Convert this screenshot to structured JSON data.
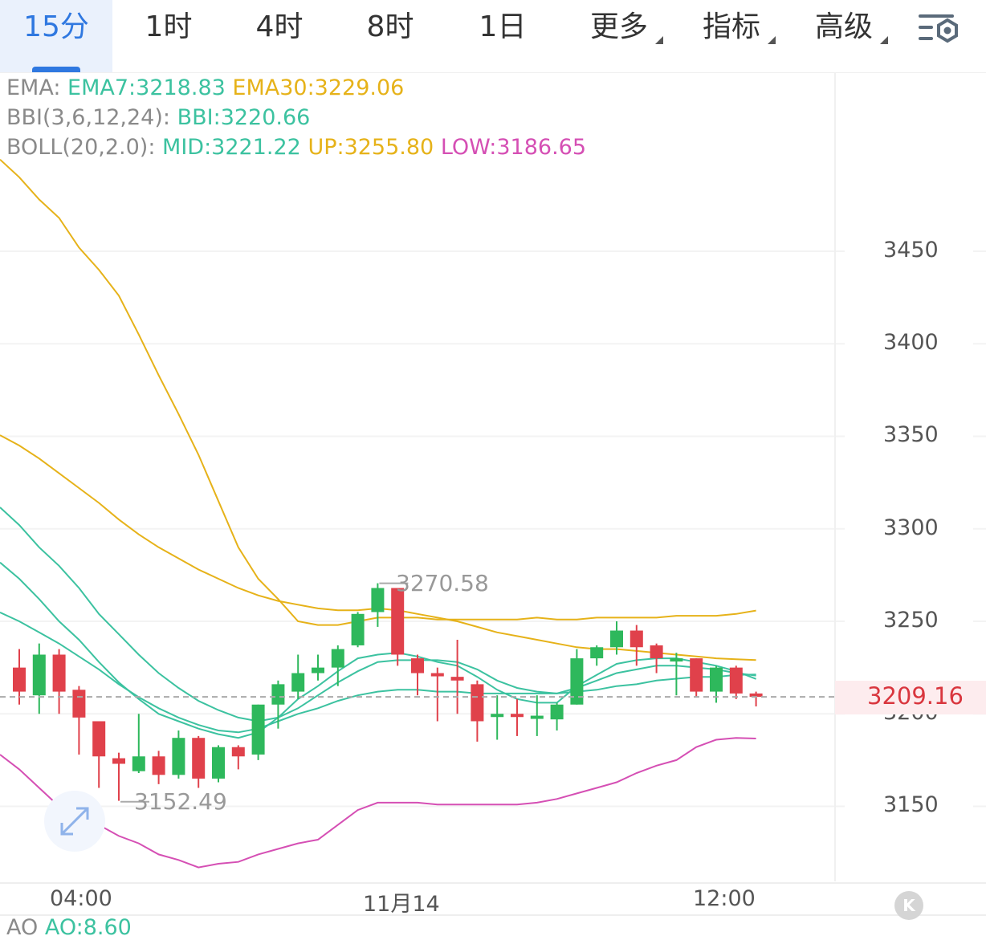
{
  "tabs": [
    {
      "label": "15分",
      "active": true
    },
    {
      "label": "1时"
    },
    {
      "label": "4时"
    },
    {
      "label": "8时"
    },
    {
      "label": "1日"
    },
    {
      "label": "更多",
      "dropdown": true
    },
    {
      "label": "指标",
      "dropdown": true
    },
    {
      "label": "高级",
      "dropdown": true
    }
  ],
  "settings_icon": "chart-settings-icon",
  "legend": {
    "ema": {
      "name": "EMA:",
      "ema7": "EMA7:3218.83",
      "ema30": "EMA30:3229.06"
    },
    "bbi": {
      "name": "BBI(3,6,12,24):",
      "value": "BBI:3220.66"
    },
    "boll": {
      "name": "BOLL(20,2.0):",
      "mid": "MID:3221.22",
      "up": "UP:3255.80",
      "low": "LOW:3186.65"
    }
  },
  "ao": {
    "name": "AO",
    "value": "AO:8.60"
  },
  "colors": {
    "up": "#2eb85c",
    "down": "#e0414b",
    "ema7": "#3cc2a0",
    "ema30": "#e6b219",
    "boll_low": "#d54fb4",
    "accent": "#2f78e0",
    "last_price": "#d9363e"
  },
  "chart_data": {
    "type": "candlestick",
    "y_axis": {
      "ticks": [
        3450,
        3400,
        3350,
        3300,
        3250,
        3200,
        3150
      ],
      "range": [
        3110,
        3500
      ]
    },
    "x_axis": {
      "labels": [
        "04:00",
        "11月14",
        "12:00"
      ]
    },
    "last_price": "3209.16",
    "high_marker": "3270.58",
    "low_marker": "3152.49",
    "candles": [
      {
        "o": 3225,
        "h": 3235,
        "l": 3205,
        "c": 3212
      },
      {
        "o": 3210,
        "h": 3238,
        "l": 3200,
        "c": 3232
      },
      {
        "o": 3232,
        "h": 3235,
        "l": 3200,
        "c": 3212
      },
      {
        "o": 3213,
        "h": 3215,
        "l": 3178,
        "c": 3198
      },
      {
        "o": 3196,
        "h": 3196,
        "l": 3160,
        "c": 3177
      },
      {
        "o": 3176,
        "h": 3179,
        "l": 3153,
        "c": 3173
      },
      {
        "o": 3169,
        "h": 3200,
        "l": 3168,
        "c": 3177
      },
      {
        "o": 3177,
        "h": 3180,
        "l": 3162,
        "c": 3167
      },
      {
        "o": 3167,
        "h": 3191,
        "l": 3165,
        "c": 3187
      },
      {
        "o": 3187,
        "h": 3188,
        "l": 3160,
        "c": 3165
      },
      {
        "o": 3165,
        "h": 3183,
        "l": 3163,
        "c": 3182
      },
      {
        "o": 3182,
        "h": 3183,
        "l": 3170,
        "c": 3177
      },
      {
        "o": 3178,
        "h": 3205,
        "l": 3175,
        "c": 3205
      },
      {
        "o": 3205,
        "h": 3218,
        "l": 3192,
        "c": 3216
      },
      {
        "o": 3212,
        "h": 3232,
        "l": 3208,
        "c": 3222
      },
      {
        "o": 3222,
        "h": 3232,
        "l": 3218,
        "c": 3225
      },
      {
        "o": 3225,
        "h": 3237,
        "l": 3215,
        "c": 3235
      },
      {
        "o": 3237,
        "h": 3255,
        "l": 3236,
        "c": 3254
      },
      {
        "o": 3255,
        "h": 3270.58,
        "l": 3247,
        "c": 3268
      },
      {
        "o": 3268,
        "h": 3268,
        "l": 3226,
        "c": 3232
      },
      {
        "o": 3230,
        "h": 3232,
        "l": 3210,
        "c": 3222
      },
      {
        "o": 3222,
        "h": 3225,
        "l": 3196,
        "c": 3221
      },
      {
        "o": 3220,
        "h": 3240,
        "l": 3200,
        "c": 3218
      },
      {
        "o": 3216,
        "h": 3218,
        "l": 3185,
        "c": 3196
      },
      {
        "o": 3200,
        "h": 3210,
        "l": 3186,
        "c": 3200
      },
      {
        "o": 3200,
        "h": 3208,
        "l": 3188,
        "c": 3199
      },
      {
        "o": 3199,
        "h": 3210,
        "l": 3188,
        "c": 3199
      },
      {
        "o": 3197,
        "h": 3206,
        "l": 3191,
        "c": 3205
      },
      {
        "o": 3205,
        "h": 3235,
        "l": 3205,
        "c": 3230
      },
      {
        "o": 3230,
        "h": 3237,
        "l": 3226,
        "c": 3236
      },
      {
        "o": 3236,
        "h": 3250,
        "l": 3232,
        "c": 3245
      },
      {
        "o": 3245,
        "h": 3248,
        "l": 3226,
        "c": 3236
      },
      {
        "o": 3237,
        "h": 3238,
        "l": 3222,
        "c": 3230
      },
      {
        "o": 3230,
        "h": 3233,
        "l": 3210,
        "c": 3230
      },
      {
        "o": 3230,
        "h": 3230,
        "l": 3209,
        "c": 3212
      },
      {
        "o": 3212,
        "h": 3226,
        "l": 3206,
        "c": 3225
      },
      {
        "o": 3225,
        "h": 3226,
        "l": 3208,
        "c": 3211
      },
      {
        "o": 3211,
        "h": 3212,
        "l": 3204,
        "c": 3209.16
      }
    ],
    "series": [
      {
        "name": "EMA30",
        "values": [
          3345,
          3338,
          3330,
          3322,
          3314,
          3305,
          3297,
          3290,
          3284,
          3278,
          3273,
          3268,
          3264,
          3261,
          3259,
          3257,
          3256,
          3256,
          3257,
          3256,
          3254,
          3252,
          3250,
          3247,
          3244,
          3242,
          3240,
          3238,
          3236,
          3235,
          3235,
          3234,
          3233,
          3232,
          3231,
          3230,
          3229.5,
          3229.06
        ]
      },
      {
        "name": "BOLL UP",
        "values": [
          3490,
          3478,
          3468,
          3452,
          3440,
          3426,
          3405,
          3383,
          3362,
          3340,
          3315,
          3290,
          3273,
          3262,
          3250,
          3248,
          3248,
          3250,
          3252,
          3252,
          3252,
          3251,
          3251,
          3251,
          3251,
          3251,
          3252,
          3251,
          3251,
          3252,
          3252,
          3252,
          3252,
          3253,
          3253,
          3253,
          3254,
          3255.8
        ]
      },
      {
        "name": "EMA7",
        "values": [
          3273,
          3262,
          3250,
          3240,
          3228,
          3217,
          3208,
          3200,
          3196,
          3192,
          3189,
          3187,
          3190,
          3198,
          3208,
          3215,
          3223,
          3230,
          3232,
          3233,
          3231,
          3228,
          3226,
          3220,
          3213,
          3208,
          3206,
          3206,
          3215,
          3221,
          3227,
          3229,
          3230,
          3230,
          3228,
          3226,
          3223,
          3218.83
        ]
      },
      {
        "name": "BBI",
        "values": [
          3302,
          3290,
          3280,
          3268,
          3254,
          3243,
          3232,
          3222,
          3214,
          3207,
          3202,
          3198,
          3196,
          3198,
          3203,
          3210,
          3217,
          3223,
          3228,
          3229,
          3229,
          3229,
          3228,
          3224,
          3218,
          3214,
          3212,
          3211,
          3214,
          3218,
          3222,
          3224,
          3226,
          3226,
          3225,
          3224,
          3222,
          3220.66
        ]
      },
      {
        "name": "MID",
        "values": [
          3250,
          3244,
          3238,
          3231,
          3224,
          3216,
          3209,
          3203,
          3198,
          3194,
          3191,
          3190,
          3192,
          3196,
          3200,
          3203,
          3207,
          3210,
          3212,
          3213,
          3213,
          3212,
          3212,
          3211,
          3211,
          3211,
          3211,
          3211,
          3212,
          3213,
          3215,
          3216,
          3218,
          3219,
          3220,
          3220,
          3221,
          3221.22
        ]
      },
      {
        "name": "BOLL LOW",
        "values": [
          3170,
          3160,
          3150,
          3145,
          3140,
          3134,
          3130,
          3124,
          3121,
          3117,
          3119,
          3120,
          3124,
          3127,
          3130,
          3132,
          3140,
          3148,
          3152,
          3152,
          3152,
          3151,
          3151,
          3151,
          3151,
          3151,
          3152,
          3154,
          3157,
          3160,
          3163,
          3168,
          3172,
          3175,
          3182,
          3186,
          3187,
          3186.65
        ]
      }
    ]
  }
}
